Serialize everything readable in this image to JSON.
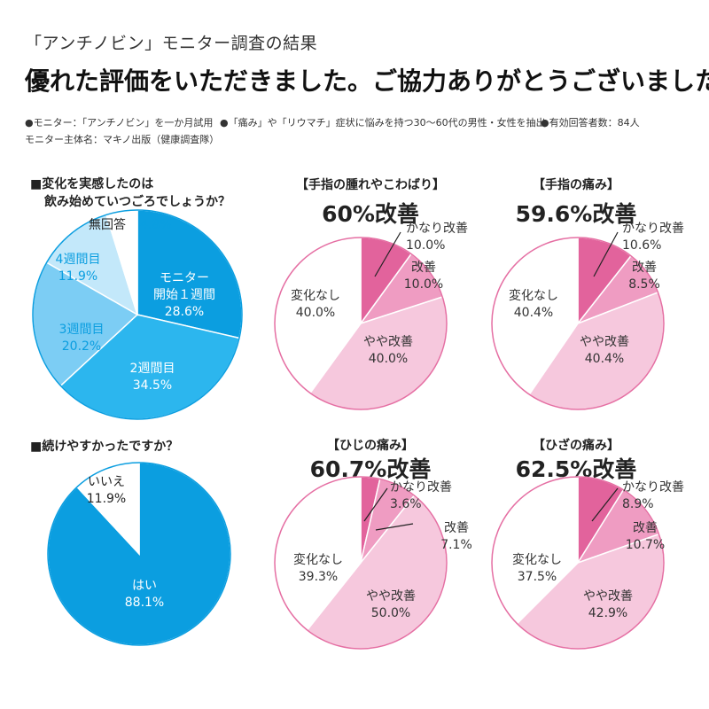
{
  "header": {
    "subtitle": "「アンチノビン」モニター調査の結果",
    "headline": "優れた評価をいただきました。ご協力ありがとうございました。"
  },
  "notes": [
    "●モニター：「アンチノビン」を一か月試用",
    "●「痛み」や「リウマチ」症状に悩みを持つ30〜60代の男性・女性を抽出",
    "●有効回答者数：84人",
    "モニター主体名：マキノ出版（健康調査隊）"
  ],
  "questions": {
    "q1_line1": "■変化を実感したのは",
    "q1_line2": "飲み始めていつごろでしょうか？",
    "q2": "■続けやすかったですか？"
  },
  "colors": {
    "blue_dark": "#0b9ee0",
    "blue_mid": "#2cb6ee",
    "blue_light": "#7ccdf4",
    "blue_pale": "#c3e8fa",
    "white": "#ffffff",
    "pink_dark": "#e2639c",
    "pink_mid": "#ef9cc2",
    "pink_light": "#f6c8dd",
    "pink_border": "#e56fa3"
  },
  "chart_data": [
    {
      "type": "pie",
      "title": "変化を実感したのは飲み始めていつごろでしょうか？",
      "slices": [
        {
          "label": "モニター開始１週間",
          "label_lines": [
            "モニター",
            "開始１週間"
          ],
          "value": 28.6,
          "value_text": "28.6%"
        },
        {
          "label": "2週間目",
          "label_lines": [
            "2週間目"
          ],
          "value": 34.5,
          "value_text": "34.5%"
        },
        {
          "label": "3週間目",
          "label_lines": [
            "3週間目"
          ],
          "value": 20.2,
          "value_text": "20.2%"
        },
        {
          "label": "4週間目",
          "label_lines": [
            "4週間目"
          ],
          "value": 11.9,
          "value_text": "11.9%"
        },
        {
          "label": "無回答",
          "label_lines": [
            "無回答"
          ],
          "value": 4.8,
          "value_text": "4.8%"
        }
      ]
    },
    {
      "type": "pie",
      "title": "続けやすかったですか？",
      "slices": [
        {
          "label": "はい",
          "label_lines": [
            "はい"
          ],
          "value": 88.1,
          "value_text": "88.1%"
        },
        {
          "label": "いいえ",
          "label_lines": [
            "いいえ"
          ],
          "value": 11.9,
          "value_text": "11.9%"
        }
      ]
    },
    {
      "type": "pie",
      "title": "【手指の腫れやこわばり】",
      "summary": "60%改善",
      "slices": [
        {
          "label": "かなり改善",
          "value": 10.0,
          "value_text": "10.0%"
        },
        {
          "label": "改善",
          "value": 10.0,
          "value_text": "10.0%"
        },
        {
          "label": "やや改善",
          "value": 40.0,
          "value_text": "40.0%"
        },
        {
          "label": "変化なし",
          "value": 40.0,
          "value_text": "40.0%"
        }
      ]
    },
    {
      "type": "pie",
      "title": "【手指の痛み】",
      "summary": "59.6%改善",
      "slices": [
        {
          "label": "かなり改善",
          "value": 10.6,
          "value_text": "10.6%"
        },
        {
          "label": "改善",
          "value": 8.5,
          "value_text": "8.5%"
        },
        {
          "label": "やや改善",
          "value": 40.4,
          "value_text": "40.4%"
        },
        {
          "label": "変化なし",
          "value": 40.4,
          "value_text": "40.4%"
        }
      ]
    },
    {
      "type": "pie",
      "title": "【ひじの痛み】",
      "summary": "60.7%改善",
      "slices": [
        {
          "label": "かなり改善",
          "value": 3.6,
          "value_text": "3.6%"
        },
        {
          "label": "改善",
          "value": 7.1,
          "value_text": "7.1%"
        },
        {
          "label": "やや改善",
          "value": 50.0,
          "value_text": "50.0%"
        },
        {
          "label": "変化なし",
          "value": 39.3,
          "value_text": "39.3%"
        }
      ]
    },
    {
      "type": "pie",
      "title": "【ひざの痛み】",
      "summary": "62.5%改善",
      "slices": [
        {
          "label": "かなり改善",
          "value": 8.9,
          "value_text": "8.9%"
        },
        {
          "label": "改善",
          "value": 10.7,
          "value_text": "10.7%"
        },
        {
          "label": "やや改善",
          "value": 42.9,
          "value_text": "42.9%"
        },
        {
          "label": "変化なし",
          "value": 37.5,
          "value_text": "37.5%"
        }
      ]
    }
  ]
}
